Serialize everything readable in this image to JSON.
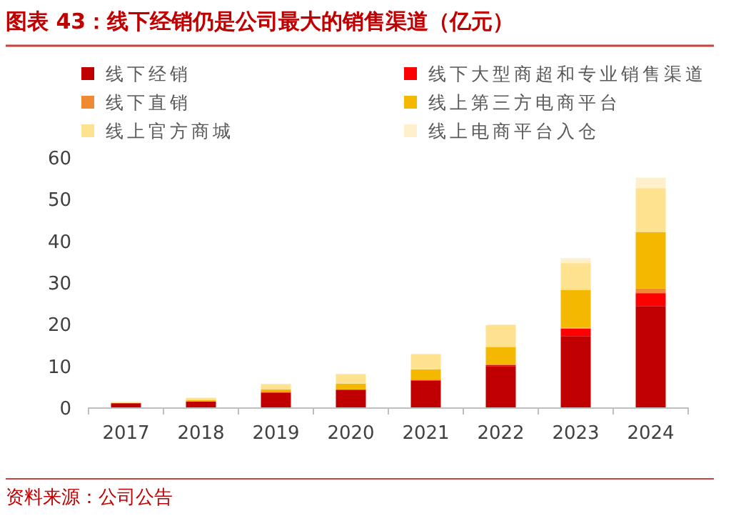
{
  "chart_data": {
    "type": "bar",
    "stacked": true,
    "title": "图表 43：线下经销仍是公司最大的销售渠道（亿元）",
    "categories": [
      "2017",
      "2018",
      "2019",
      "2020",
      "2021",
      "2022",
      "2023",
      "2024"
    ],
    "series": [
      {
        "name": "线下经销",
        "color": "#c00000",
        "values": [
          1.0,
          1.4,
          3.5,
          4.2,
          6.4,
          9.8,
          17.1,
          24.3
        ]
      },
      {
        "name": "线下大型商超和专业销售渠道",
        "color": "#ff0000",
        "values": [
          0,
          0,
          0.2,
          0.1,
          0.2,
          0.4,
          1.8,
          3.1
        ]
      },
      {
        "name": "线下直销",
        "color": "#f08a32",
        "values": [
          0,
          0,
          0,
          0,
          0,
          0.1,
          0.2,
          1.1
        ]
      },
      {
        "name": "线上第三方电商平台",
        "color": "#f5b800",
        "values": [
          0.1,
          0.4,
          0.6,
          1.4,
          2.5,
          4.2,
          9.1,
          13.5
        ]
      },
      {
        "name": "线上官方商城",
        "color": "#ffe28f",
        "values": [
          0.2,
          0.5,
          1.3,
          2.3,
          3.7,
          5.3,
          6.4,
          10.6
        ]
      },
      {
        "name": "线上电商平台入仓",
        "color": "#fff0cc",
        "values": [
          0,
          0,
          0,
          0,
          0,
          0,
          1.2,
          2.5
        ]
      }
    ],
    "ylim": [
      0,
      60
    ],
    "yticks": [
      0,
      10,
      20,
      30,
      40,
      50,
      60
    ],
    "grid": false,
    "legend": "top",
    "annotations": [
      "资料来源：公司公告"
    ]
  }
}
